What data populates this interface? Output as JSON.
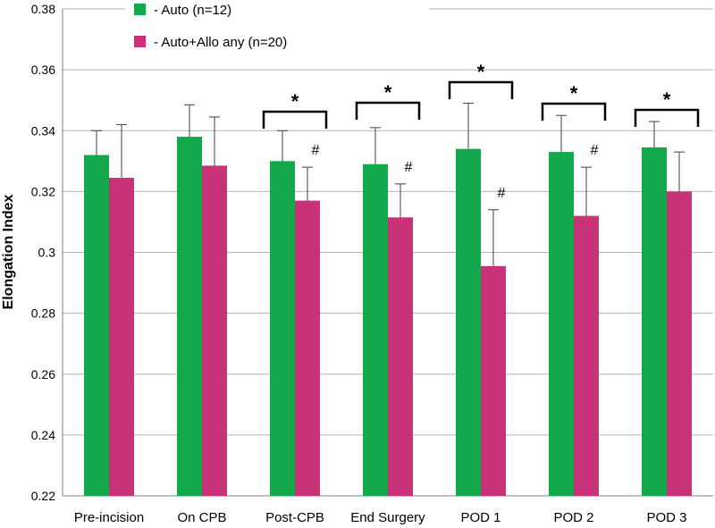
{
  "chart_data": {
    "type": "bar",
    "title": "",
    "xlabel": "",
    "ylabel": "Elongation Index",
    "ylim": [
      0.22,
      0.38
    ],
    "yticks": [
      0.22,
      0.24,
      0.26,
      0.28,
      0.3,
      0.32,
      0.34,
      0.36,
      0.38
    ],
    "ytick_labels": [
      "0.22",
      "0.24",
      "0.26",
      "0.28",
      "0.3",
      "0.32",
      "0.34",
      "0.36",
      "0.38"
    ],
    "grid": true,
    "legend_position": "top",
    "categories": [
      "Pre-incision",
      "On CPB",
      "Post-CPB",
      "End Surgery",
      "POD 1",
      "POD 2",
      "POD 3"
    ],
    "series": [
      {
        "name": "- Auto (n=12)",
        "color": "#12a84b",
        "values": [
          0.332,
          0.338,
          0.33,
          0.329,
          0.334,
          0.333,
          0.3345
        ],
        "error_upper": [
          0.34,
          0.3485,
          0.34,
          0.341,
          0.349,
          0.345,
          0.343
        ]
      },
      {
        "name": "- Auto+Allo any (n=20)",
        "color": "#c83378",
        "values": [
          0.3245,
          0.3285,
          0.317,
          0.3115,
          0.2955,
          0.312,
          0.32
        ],
        "error_upper": [
          0.342,
          0.3445,
          0.328,
          0.3225,
          0.314,
          0.328,
          0.333
        ]
      }
    ],
    "annotations": {
      "significance_brackets": [
        {
          "category": "Post-CPB",
          "label": "*"
        },
        {
          "category": "End Surgery",
          "label": "*"
        },
        {
          "category": "POD 1",
          "label": "*"
        },
        {
          "category": "POD 2",
          "label": "*"
        },
        {
          "category": "POD 3",
          "label": "*"
        }
      ],
      "hash_marks": [
        {
          "category": "Post-CPB",
          "series": 1,
          "label": "#"
        },
        {
          "category": "End Surgery",
          "series": 1,
          "label": "#"
        },
        {
          "category": "POD 1",
          "series": 1,
          "label": "#"
        },
        {
          "category": "POD 2",
          "series": 1,
          "label": "#"
        }
      ]
    }
  }
}
